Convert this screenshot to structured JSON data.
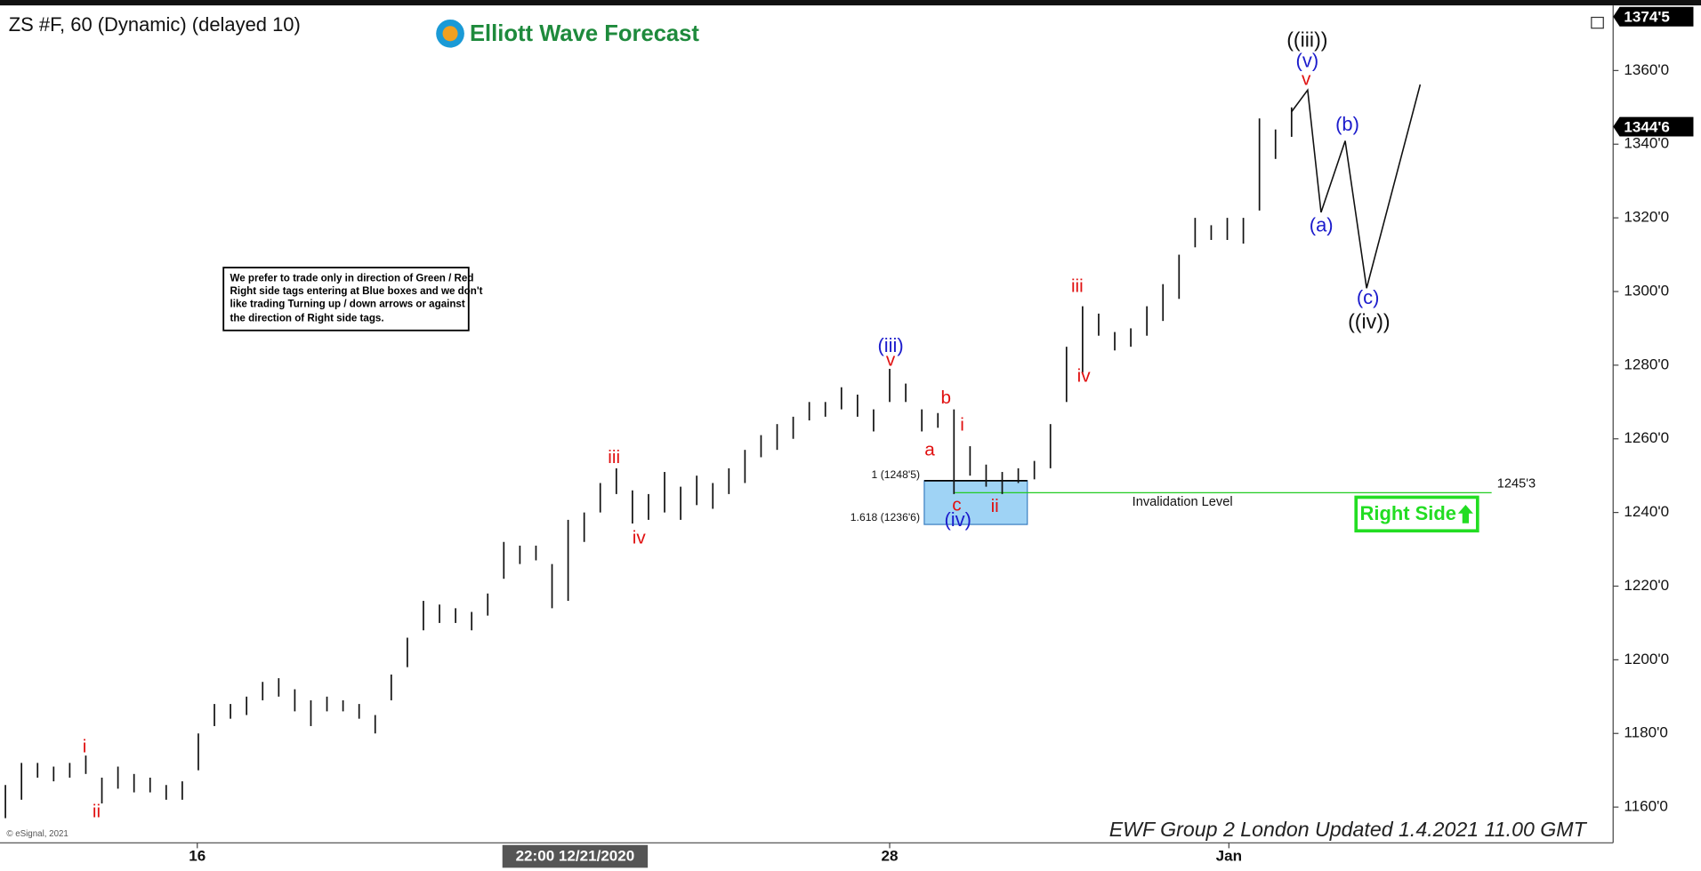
{
  "chart_data": {
    "type": "ohlc",
    "title": "ZS #F, 60 (Dynamic) (delayed 10)",
    "logo": "Elliott Wave Forecast",
    "copyright": "© eSignal, 2021",
    "footer": "EWF Group 2 London Updated 1.4.2021 11.00 GMT",
    "note": [
      "We prefer to trade only in direction of Green / Red",
      "Right side tags entering at Blue boxes and we don't",
      "like trading Turning up / down arrows or against",
      "the direction of Right side tags."
    ],
    "color": "#111111",
    "xlim": [
      0,
      300
    ],
    "ylim": [
      1150.3,
      1376.8
    ],
    "yticks": [
      {
        "value": 1160,
        "label": "1160'0"
      },
      {
        "value": 1180,
        "label": "1180'0"
      },
      {
        "value": 1200,
        "label": "1200'0"
      },
      {
        "value": 1220,
        "label": "1220'0"
      },
      {
        "value": 1240,
        "label": "1240'0"
      },
      {
        "value": 1260,
        "label": "1260'0"
      },
      {
        "value": 1280,
        "label": "1280'0"
      },
      {
        "value": 1300,
        "label": "1300'0"
      },
      {
        "value": 1320,
        "label": "1320'0"
      },
      {
        "value": 1340,
        "label": "1340'0"
      },
      {
        "value": 1360,
        "label": "1360'0"
      }
    ],
    "xticks": [
      {
        "value": 35.8,
        "label": "16"
      },
      {
        "value": 165,
        "label": "28"
      },
      {
        "value": 228.3,
        "label": "Jan"
      }
    ],
    "crosshair": {
      "value": 106.3,
      "label": "22:00 12/21/2020"
    },
    "price_tags": [
      {
        "value": 1374.625,
        "label": "1374'5"
      },
      {
        "value": 1344.75,
        "label": "1344'6"
      }
    ],
    "x": [
      0,
      3,
      6,
      9,
      12,
      15,
      18,
      21,
      24,
      27,
      30,
      33,
      36,
      39,
      42,
      45,
      48,
      51,
      54,
      57,
      60,
      63,
      66,
      69,
      72,
      75,
      78,
      81,
      84,
      87,
      90,
      93,
      96,
      99,
      102,
      105,
      108,
      111,
      114,
      117,
      120,
      123,
      126,
      129,
      132,
      135,
      138,
      141,
      144,
      147,
      150,
      153,
      156,
      159,
      162,
      165,
      168,
      171,
      174,
      177,
      180,
      183,
      186,
      189,
      192,
      195,
      198,
      201,
      204,
      207,
      210,
      213,
      216,
      219,
      222,
      225,
      228,
      231,
      234,
      237,
      240
    ],
    "high": [
      1166,
      1172,
      1172,
      1171,
      1172,
      1174,
      1168,
      1171,
      1169,
      1168,
      1166,
      1167,
      1180,
      1188,
      1188,
      1190,
      1194,
      1195,
      1192,
      1189,
      1190,
      1189,
      1188,
      1185,
      1196,
      1206,
      1216,
      1215,
      1214,
      1213,
      1218,
      1232,
      1231,
      1231,
      1226,
      1238,
      1240,
      1248,
      1252,
      1246,
      1245,
      1251,
      1247,
      1250,
      1248,
      1252,
      1257,
      1261,
      1264,
      1266,
      1270,
      1270,
      1274,
      1272,
      1268,
      1279,
      1275,
      1268,
      1267,
      1268,
      1258,
      1253,
      1251,
      1252,
      1254,
      1264,
      1285,
      1296,
      1294,
      1289,
      1290,
      1296,
      1302,
      1310,
      1320,
      1318,
      1320,
      1320,
      1347,
      1344,
      1350
    ],
    "low": [
      1157,
      1162,
      1168,
      1167,
      1168,
      1169,
      1161,
      1165,
      1164,
      1164,
      1162,
      1162,
      1170,
      1182,
      1184,
      1185,
      1189,
      1190,
      1186,
      1182,
      1186,
      1186,
      1184,
      1180,
      1189,
      1198,
      1208,
      1210,
      1210,
      1208,
      1212,
      1222,
      1226,
      1227,
      1214,
      1216,
      1232,
      1240,
      1245,
      1237,
      1238,
      1240,
      1238,
      1242,
      1241,
      1245,
      1248,
      1255,
      1257,
      1260,
      1265,
      1266,
      1268,
      1266,
      1262,
      1270,
      1270,
      1262,
      1263,
      1245,
      1250,
      1247,
      1245,
      1248,
      1249,
      1252,
      1270,
      1278,
      1288,
      1284,
      1285,
      1288,
      1292,
      1298,
      1312,
      1314,
      1314,
      1313,
      1322,
      1336,
      1342
    ],
    "projection": {
      "x": [
        240,
        243,
        245.5,
        250,
        254,
        264
      ],
      "values": [
        1348.8,
        1354.7,
        1321.5,
        1340.9,
        1300.9,
        1356.2
      ]
    },
    "box": {
      "top": {
        "value": 1248.625,
        "label": "1 (1248'5)"
      },
      "bottom": {
        "value": 1236.75,
        "label": "1.618 (1236'6)"
      }
    },
    "invalidation": {
      "value": 1245.375,
      "label": "1245'3",
      "text": "Invalidation Level"
    },
    "right_side": "Right Side",
    "wave_labels": [
      "i",
      "ii",
      "iii",
      "iv",
      "(iii)",
      "v",
      "a",
      "b",
      "i",
      "c",
      "(iv)",
      "ii",
      "iii",
      "iv",
      "((iii))",
      "(v)",
      "v",
      "(a)",
      "(b)",
      "(c)",
      "((iv))"
    ]
  }
}
